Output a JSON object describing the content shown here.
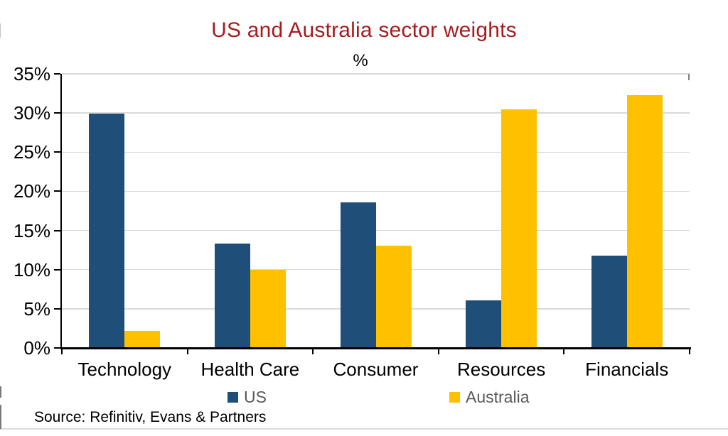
{
  "page": {
    "source": "Source: Refinitiv, Evans & Partners"
  },
  "chart_data": {
    "type": "bar",
    "title": "US and Australia sector weights",
    "unit_label": "%",
    "categories": [
      "Technology",
      "Health Care",
      "Consumer",
      "Resources",
      "Financials"
    ],
    "series": [
      {
        "name": "US",
        "color": "#1F4E79",
        "values": [
          29.9,
          13.3,
          18.6,
          6.1,
          11.8
        ]
      },
      {
        "name": "Australia",
        "color": "#FFC000",
        "values": [
          2.2,
          10.0,
          13.1,
          30.5,
          32.3
        ]
      }
    ],
    "ylim": [
      0,
      35
    ],
    "ytick_step": 5,
    "ytick_labels": [
      "0%",
      "5%",
      "10%",
      "15%",
      "20%",
      "25%",
      "30%",
      "35%"
    ],
    "grid": true,
    "legend_position": "bottom",
    "colors": {
      "title": "#A61C1E",
      "gridline": "#D9D9D9",
      "axis": "#000000",
      "legend_text": "#595959",
      "tick_text": "#000000"
    }
  }
}
